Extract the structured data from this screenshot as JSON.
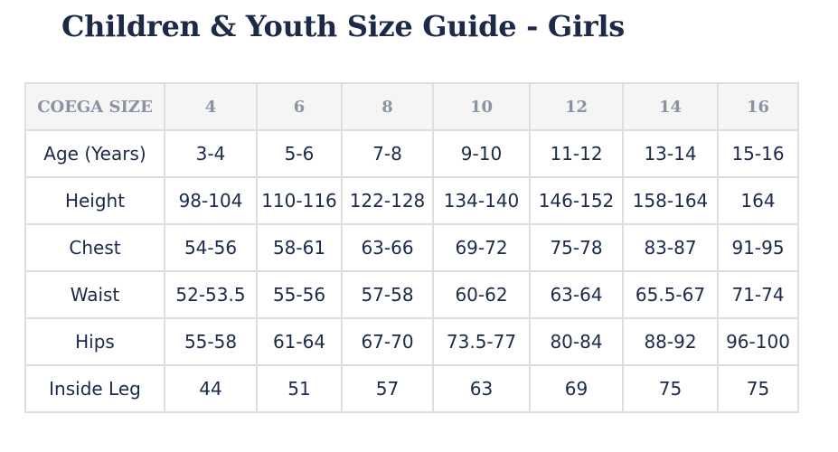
{
  "header": {
    "title": "Children & Youth Size Guide - Girls"
  },
  "table": {
    "columns": [
      "COEGA SIZE",
      "4",
      "6",
      "8",
      "10",
      "12",
      "14",
      "16"
    ],
    "rows": [
      [
        "Age (Years)",
        "3-4",
        "5-6",
        "7-8",
        "9-10",
        "11-12",
        "13-14",
        "15-16"
      ],
      [
        "Height",
        "98-104",
        "110-116",
        "122-128",
        "134-140",
        "146-152",
        "158-164",
        "164"
      ],
      [
        "Chest",
        "54-56",
        "58-61",
        "63-66",
        "69-72",
        "75-78",
        "83-87",
        "91-95"
      ],
      [
        "Waist",
        "52-53.5",
        "55-56",
        "57-58",
        "60-62",
        "63-64",
        "65.5-67",
        "71-74"
      ],
      [
        "Hips",
        "55-58",
        "61-64",
        "67-70",
        "73.5-77",
        "80-84",
        "88-92",
        "96-100"
      ],
      [
        "Inside Leg",
        "44",
        "51",
        "57",
        "63",
        "69",
        "75",
        "75"
      ]
    ]
  }
}
